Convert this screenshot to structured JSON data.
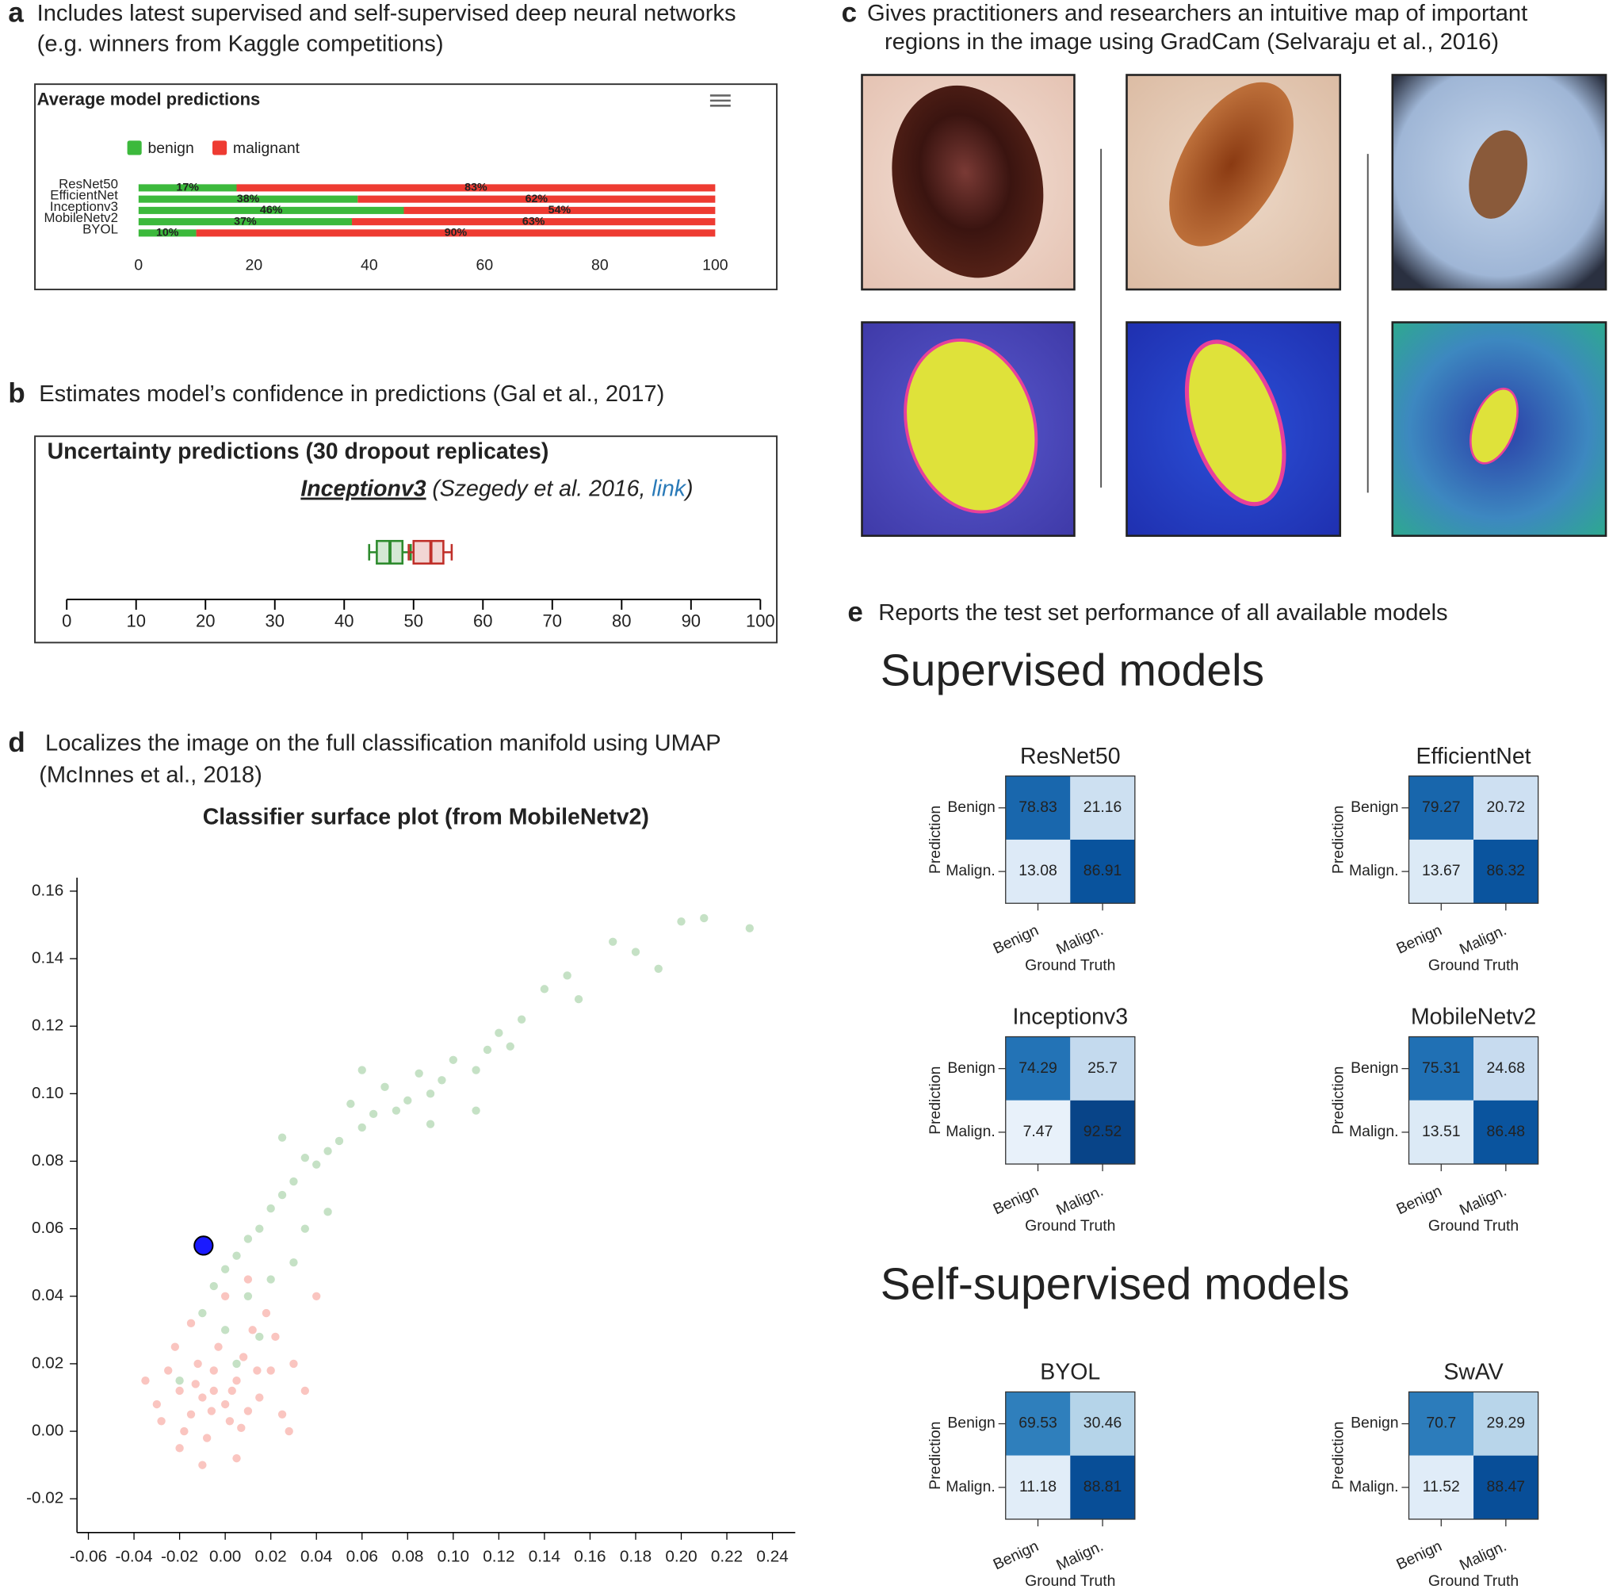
{
  "panels": [
    {
      "letter": "a",
      "caption": [
        "Includes latest supervised and self-supervised deep neural networks",
        "(e.g. winners from Kaggle competitions)"
      ]
    },
    {
      "letter": "b",
      "caption": [
        "Estimates model’s confidence in predictions (Gal et al., 2017)"
      ]
    },
    {
      "letter": "c",
      "caption": [
        "Gives practitioners and researchers an intuitive map of important",
        "regions in the image using GradCam (Selvaraju et al., 2016)"
      ]
    },
    {
      "letter": "d",
      "caption": [
        "Localizes the image on the full classification manifold using UMAP",
        "(McInnes et al., 2018)"
      ]
    },
    {
      "letter": "e",
      "caption": [
        "Reports the test set performance of all available models"
      ]
    }
  ],
  "headings": {
    "supervised": "Supervised models",
    "self_supervised": "Self-supervised models"
  },
  "chart_data": [
    {
      "type": "stacked_hbar",
      "title": "Average model predictions",
      "categories": [
        "ResNet50",
        "EfficientNet",
        "Inceptionv3",
        "MobileNetv2",
        "BYOL"
      ],
      "series": [
        {
          "name": "benign",
          "color": "#3cb93c",
          "values": [
            17,
            38,
            46,
            37,
            10
          ],
          "value_labels": [
            "17%",
            "38%",
            "46%",
            "37%",
            "10%"
          ]
        },
        {
          "name": "malignant",
          "color": "#ee3b32",
          "values": [
            83,
            62,
            54,
            63,
            90
          ],
          "value_labels": [
            "83%",
            "62%",
            "54%",
            "63%",
            "90%"
          ]
        }
      ],
      "xlim": [
        0,
        100
      ],
      "xticks": [
        0,
        20,
        40,
        60,
        80,
        100
      ],
      "legend": "top-left",
      "grid": false
    },
    {
      "type": "box",
      "title": "Uncertainty predictions (30 dropout replicates)",
      "subtitle": {
        "model": "Inceptionv3",
        "citation": "(Szegedy et al. 2016, ",
        "link": "link",
        "close": ")"
      },
      "series": [
        {
          "color": "#2e8b2e",
          "min": 43.6,
          "q1": 44.7,
          "median": 46.6,
          "q3": 48.4,
          "max": 49.6
        },
        {
          "color": "#c0302a",
          "min": 49.3,
          "q1": 50,
          "median": 52.5,
          "q3": 54.3,
          "max": 55.5
        }
      ],
      "xlim": [
        0,
        100
      ],
      "xticks": [
        0,
        10,
        20,
        30,
        40,
        50,
        60,
        70,
        80,
        90,
        100
      ]
    },
    {
      "type": "scatter",
      "title": "Classifier surface plot (from MobileNetv2)",
      "series": [
        {
          "color": "#5aa85a",
          "opacity": 0.35,
          "size": 8,
          "x": [
            0.23,
            0.21,
            0.2,
            0.19,
            0.18,
            0.17,
            0.155,
            0.14,
            0.13,
            0.12,
            0.115,
            0.11,
            0.1,
            0.095,
            0.09,
            0.085,
            0.08,
            0.075,
            0.07,
            0.065,
            0.06,
            0.055,
            0.05,
            0.045,
            0.04,
            0.035,
            0.03,
            0.025,
            0.02,
            0.015,
            0.01,
            0.005,
            0.0,
            -0.005,
            0.01,
            0.02,
            0.03,
            -0.01,
            0.0,
            -0.02,
            0.005,
            0.015,
            0.045,
            0.06,
            0.09,
            0.11,
            0.125,
            0.025,
            0.035,
            0.15
          ],
          "y": [
            0.149,
            0.152,
            0.151,
            0.137,
            0.142,
            0.145,
            0.128,
            0.131,
            0.122,
            0.118,
            0.113,
            0.107,
            0.11,
            0.104,
            0.1,
            0.106,
            0.098,
            0.095,
            0.102,
            0.094,
            0.09,
            0.097,
            0.086,
            0.083,
            0.079,
            0.081,
            0.074,
            0.07,
            0.066,
            0.06,
            0.057,
            0.052,
            0.048,
            0.043,
            0.04,
            0.045,
            0.05,
            0.035,
            0.03,
            0.015,
            0.02,
            0.028,
            0.065,
            0.107,
            0.091,
            0.095,
            0.114,
            0.087,
            0.06,
            0.135
          ]
        },
        {
          "color": "#f05a4a",
          "opacity": 0.35,
          "size": 8,
          "x": [
            -0.01,
            -0.005,
            0.0,
            -0.015,
            0.005,
            -0.02,
            -0.012,
            0.002,
            -0.008,
            0.01,
            -0.025,
            -0.018,
            0.008,
            0.015,
            -0.03,
            -0.003,
            0.012,
            -0.022,
            0.02,
            0.025,
            -0.01,
            0.005,
            -0.035,
            0.03,
            0.018,
            -0.015,
            0.0,
            0.035,
            0.04,
            -0.005,
            0.003,
            -0.013,
            0.007,
            -0.028,
            0.022,
            0.01,
            -0.006,
            0.014,
            -0.02,
            0.028
          ],
          "y": [
            0.01,
            0.012,
            0.008,
            0.005,
            0.015,
            0.012,
            0.02,
            0.003,
            -0.002,
            0.006,
            0.018,
            0.0,
            0.022,
            0.01,
            0.008,
            0.025,
            0.03,
            0.025,
            0.018,
            0.005,
            -0.01,
            -0.008,
            0.015,
            0.02,
            0.035,
            0.032,
            0.04,
            0.012,
            0.04,
            0.018,
            0.012,
            0.014,
            0.001,
            0.003,
            0.028,
            0.045,
            0.006,
            0.018,
            -0.005,
            0.0
          ]
        },
        {
          "color": "#1a1aff",
          "opacity": 1,
          "size": 18,
          "x": [
            -0.0095
          ],
          "y": [
            0.055
          ]
        }
      ],
      "xlim": [
        -0.065,
        0.25
      ],
      "xticks": [
        -0.06,
        -0.04,
        -0.02,
        {
          "value": 0,
          "label": "0.00"
        },
        0.02,
        0.04,
        0.06,
        0.08,
        {
          "value": 0.1,
          "label": "0.10"
        },
        0.12,
        0.14,
        0.16,
        0.18,
        {
          "value": 0.2,
          "label": "0.20"
        },
        0.22,
        0.24
      ],
      "ylim": [
        -0.03,
        0.164
      ],
      "yticks": [
        -0.02,
        {
          "value": 0,
          "label": "0.00"
        },
        0.02,
        0.04,
        0.06,
        0.08,
        {
          "value": 0.1,
          "label": "0.10"
        },
        0.12,
        0.14,
        0.16
      ]
    },
    {
      "type": "heatmap",
      "title": "ResNet50",
      "x_categories": [
        "Benign",
        "Malign."
      ],
      "y_categories": [
        "Benign",
        "Malign."
      ],
      "xlabel": "Ground Truth",
      "ylabel": "Prediction",
      "values": [
        [
          78.83,
          21.16
        ],
        [
          13.08,
          86.91
        ]
      ],
      "clim": [
        0,
        100
      ],
      "colormap": "Blues"
    },
    {
      "type": "heatmap",
      "title": "EfficientNet",
      "x_categories": [
        "Benign",
        "Malign."
      ],
      "y_categories": [
        "Benign",
        "Malign."
      ],
      "xlabel": "Ground Truth",
      "ylabel": "Prediction",
      "values": [
        [
          79.27,
          20.72
        ],
        [
          13.67,
          86.32
        ]
      ],
      "clim": [
        0,
        100
      ],
      "colormap": "Blues"
    },
    {
      "type": "heatmap",
      "title": "Inceptionv3",
      "x_categories": [
        "Benign",
        "Malign."
      ],
      "y_categories": [
        "Benign",
        "Malign."
      ],
      "xlabel": "Ground Truth",
      "ylabel": "Prediction",
      "values": [
        [
          74.29,
          25.7
        ],
        [
          7.47,
          92.52
        ]
      ],
      "clim": [
        0,
        100
      ],
      "colormap": "Blues"
    },
    {
      "type": "heatmap",
      "title": "MobileNetv2",
      "x_categories": [
        "Benign",
        "Malign."
      ],
      "y_categories": [
        "Benign",
        "Malign."
      ],
      "xlabel": "Ground Truth",
      "ylabel": "Prediction",
      "values": [
        [
          75.31,
          24.68
        ],
        [
          13.51,
          86.48
        ]
      ],
      "clim": [
        0,
        100
      ],
      "colormap": "Blues"
    },
    {
      "type": "heatmap",
      "title": "BYOL",
      "x_categories": [
        "Benign",
        "Malign."
      ],
      "y_categories": [
        "Benign",
        "Malign."
      ],
      "xlabel": "Ground Truth",
      "ylabel": "Prediction",
      "values": [
        [
          69.53,
          30.46
        ],
        [
          11.18,
          88.81
        ]
      ],
      "clim": [
        0,
        100
      ],
      "colormap": "Blues"
    },
    {
      "type": "heatmap",
      "title": "SwAV",
      "x_categories": [
        "Benign",
        "Malign."
      ],
      "y_categories": [
        "Benign",
        "Malign."
      ],
      "xlabel": "Ground Truth",
      "ylabel": "Prediction",
      "values": [
        [
          70.7,
          29.29
        ],
        [
          11.52,
          88.47
        ]
      ],
      "clim": [
        0,
        100
      ],
      "colormap": "Blues"
    }
  ]
}
